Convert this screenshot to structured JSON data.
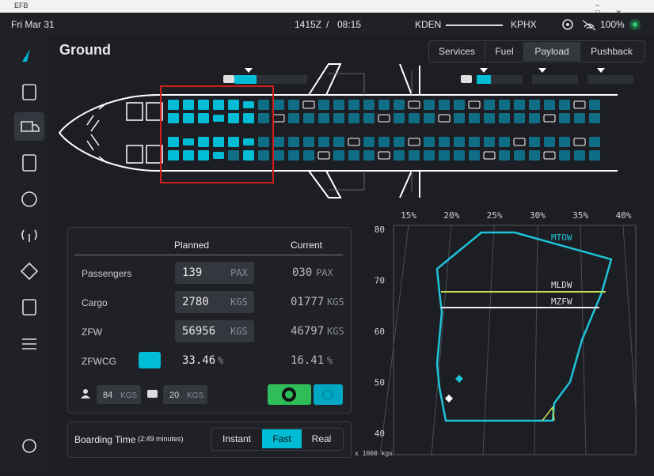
{
  "window": {
    "title": "EFB"
  },
  "status_bar": {
    "date": "Fri Mar 31",
    "utc_time": "1415Z",
    "separator": "/",
    "local_time": "08:15",
    "origin": "KDEN",
    "destination": "KPHX",
    "battery": "100%"
  },
  "header": {
    "title": "Ground",
    "tabs": [
      "Services",
      "Fuel",
      "Payload",
      "Pushback"
    ],
    "active_tab": 2
  },
  "load_table": {
    "columns": [
      "Planned",
      "Current"
    ],
    "rows": [
      {
        "label": "Passengers",
        "planned": "139",
        "planned_unit": "PAX",
        "current": "030",
        "current_unit": "PAX"
      },
      {
        "label": "Cargo",
        "planned": "2780",
        "planned_unit": "KGS",
        "current": "01777",
        "current_unit": "KGS"
      },
      {
        "label": "ZFW",
        "planned": "56956",
        "planned_unit": "KGS",
        "current": "46797",
        "current_unit": "KGS"
      },
      {
        "label": "ZFWCG",
        "planned": "33.46",
        "planned_unit": "%",
        "current": "16.41",
        "current_unit": "%"
      }
    ],
    "pax_weight": "84",
    "pax_weight_unit": "KGS",
    "bag_weight": "20",
    "bag_weight_unit": "KGS"
  },
  "boarding": {
    "label": "Boarding Time",
    "duration": "(2:49 minutes)",
    "options": [
      "Instant",
      "Fast",
      "Real"
    ],
    "active_option": 1
  },
  "cg_chart": {
    "x_labels": [
      "15%",
      "20%",
      "25%",
      "30%",
      "35%",
      "40%"
    ],
    "y_labels": [
      "80",
      "70",
      "60",
      "50",
      "40"
    ],
    "unit_label": "x 1000 kgs",
    "limits": [
      "MTOW",
      "MLDW",
      "MZFW"
    ]
  }
}
